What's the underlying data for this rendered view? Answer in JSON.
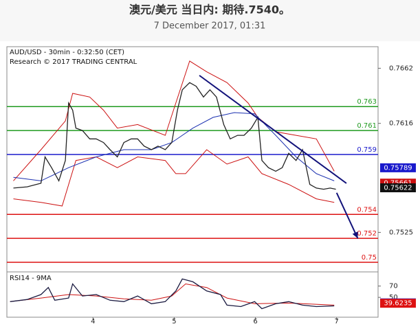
{
  "header": {
    "title": "澳元/美元 当日内: 期待.7540。",
    "subtitle": "7 December 2017, 01:31"
  },
  "chart_data": [
    {
      "type": "line",
      "annotations": [
        "AUD/USD - 30min - 0:32:50 (CET)",
        "Research © 2017 TRADING CENTRAL"
      ],
      "xlim": [
        2.94,
        7.51
      ],
      "ylim": [
        0.7492,
        0.768
      ],
      "yticks": [
        0.7662,
        0.7616,
        0.7525
      ],
      "series": [
        {
          "color": "#cc1111",
          "x": [
            3.02,
            3.36,
            3.66,
            3.75,
            3.96,
            4.13,
            4.3,
            4.55,
            4.89,
            5.02,
            5.19,
            5.4,
            5.65,
            5.91,
            6.03,
            6.25,
            6.5,
            6.75,
            6.97
          ],
          "values": [
            0.7568,
            0.7594,
            0.7618,
            0.7641,
            0.7638,
            0.7627,
            0.7612,
            0.7615,
            0.7606,
            0.7633,
            0.7668,
            0.7659,
            0.765,
            0.7633,
            0.7621,
            0.7609,
            0.7606,
            0.7603,
            0.7576
          ]
        },
        {
          "color": "#cc1111",
          "x": [
            3.02,
            3.36,
            3.62,
            3.79,
            4.04,
            4.3,
            4.55,
            4.89,
            5.02,
            5.14,
            5.4,
            5.65,
            5.91,
            6.08,
            6.41,
            6.75,
            6.97
          ],
          "values": [
            0.7553,
            0.755,
            0.7547,
            0.7585,
            0.7588,
            0.7579,
            0.7588,
            0.7585,
            0.7574,
            0.7574,
            0.7594,
            0.7582,
            0.7588,
            0.7574,
            0.7565,
            0.7553,
            0.755
          ]
        },
        {
          "color": "#1a2fb0",
          "x": [
            3.02,
            3.36,
            3.7,
            4.04,
            4.38,
            4.72,
            4.97,
            5.23,
            5.48,
            5.74,
            5.99,
            6.25,
            6.5,
            6.75,
            6.97
          ],
          "values": [
            0.7571,
            0.7568,
            0.7579,
            0.7588,
            0.7594,
            0.7594,
            0.76,
            0.7612,
            0.7621,
            0.7625,
            0.7624,
            0.7606,
            0.7588,
            0.7574,
            0.7568
          ]
        },
        {
          "color": "#222222",
          "x": [
            3.02,
            3.19,
            3.36,
            3.41,
            3.49,
            3.58,
            3.66,
            3.7,
            3.75,
            3.79,
            3.87,
            3.96,
            4.04,
            4.13,
            4.21,
            4.3,
            4.38,
            4.47,
            4.55,
            4.63,
            4.72,
            4.8,
            4.89,
            4.97,
            5.04,
            5.1,
            5.19,
            5.27,
            5.36,
            5.44,
            5.52,
            5.61,
            5.69,
            5.78,
            5.86,
            5.95,
            6.03,
            6.08,
            6.16,
            6.25,
            6.33,
            6.41,
            6.5,
            6.58,
            6.67,
            6.75,
            6.84,
            6.92,
            6.99
          ],
          "values": [
            0.7562,
            0.7563,
            0.7566,
            0.7588,
            0.7579,
            0.7568,
            0.7585,
            0.7633,
            0.7627,
            0.7612,
            0.761,
            0.7603,
            0.7603,
            0.76,
            0.7594,
            0.7588,
            0.76,
            0.7603,
            0.7603,
            0.7597,
            0.7594,
            0.7597,
            0.7594,
            0.76,
            0.7627,
            0.7644,
            0.765,
            0.7647,
            0.7638,
            0.7644,
            0.7638,
            0.7615,
            0.7603,
            0.7606,
            0.7606,
            0.7612,
            0.7621,
            0.7585,
            0.7579,
            0.7576,
            0.7579,
            0.7591,
            0.7585,
            0.7594,
            0.7565,
            0.7562,
            0.7561,
            0.7562,
            0.7561
          ]
        }
      ],
      "levels": [
        {
          "value": 0.763,
          "color": "#1f9a1f"
        },
        {
          "value": 0.761,
          "color": "#1f9a1f"
        },
        {
          "value": 0.759,
          "color": "#1a1acc"
        },
        {
          "value": 0.754,
          "color": "#dd1111"
        },
        {
          "value": 0.752,
          "color": "#dd1111"
        },
        {
          "value": 0.75,
          "color": "#dd1111"
        }
      ],
      "trendline": {
        "color": "#12127a",
        "x": [
          5.31,
          7.12
        ],
        "y": [
          0.7656,
          0.7566
        ]
      },
      "arrow": {
        "color": "#12127a",
        "x": [
          7.0,
          7.26
        ],
        "y": [
          0.7558,
          0.752
        ]
      },
      "price_labels": [
        {
          "value": 0.75789,
          "color": "#1a1acc"
        },
        {
          "value": 0.75661,
          "color": "#cc1111"
        },
        {
          "value": 0.75622,
          "color": "#111111"
        }
      ]
    },
    {
      "type": "line",
      "title": "RSI14 - 9MA",
      "xlim": [
        2.94,
        7.51
      ],
      "xticks": [
        4,
        5,
        6,
        7
      ],
      "ylim": [
        15,
        95
      ],
      "yticks": [
        70,
        50
      ],
      "series": [
        {
          "color": "#cc1111",
          "x": [
            2.98,
            3.36,
            3.7,
            4.04,
            4.38,
            4.72,
            4.97,
            5.14,
            5.4,
            5.65,
            5.99,
            6.41,
            6.97
          ],
          "values": [
            42.5,
            48.8,
            55,
            52.5,
            47.5,
            45,
            52.5,
            73.8,
            67.5,
            48.8,
            38.8,
            40,
            36.3
          ]
        },
        {
          "color": "#1a1a40",
          "x": [
            2.98,
            3.19,
            3.36,
            3.45,
            3.53,
            3.7,
            3.75,
            3.87,
            4.04,
            4.21,
            4.38,
            4.55,
            4.72,
            4.89,
            5.02,
            5.1,
            5.23,
            5.4,
            5.57,
            5.65,
            5.82,
            5.99,
            6.08,
            6.25,
            6.41,
            6.58,
            6.75,
            6.97
          ],
          "values": [
            42.5,
            46.3,
            55,
            67.5,
            45,
            48.8,
            73.8,
            52.5,
            55,
            45,
            42.5,
            52.5,
            38.8,
            42.5,
            61.3,
            82.5,
            77.5,
            61.3,
            55,
            36.3,
            33.8,
            42.5,
            30,
            38.8,
            42.5,
            36.3,
            33.8,
            35
          ]
        }
      ],
      "price_labels": [
        {
          "value": 40.2793,
          "color": "#1a1acc"
        },
        {
          "value": 39.6235,
          "color": "#dd1111"
        }
      ]
    }
  ]
}
